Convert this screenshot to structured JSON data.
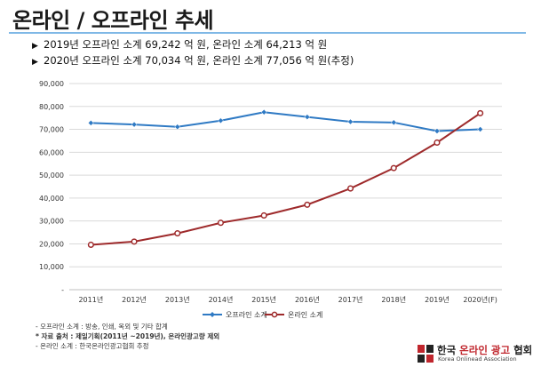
{
  "title": "온라인 / 오프라인 추세",
  "bullets": [
    "2019년 오프라인 소계 69,242 억 원, 온라인 소계 64,213 억 원",
    "2020년 오프라인 소계 70,034 억 원, 온라인 소계 77,056 억 원(추정)"
  ],
  "colors": {
    "offline": "#2f7ac4",
    "online": "#9e2a2b",
    "rule": "#7fb8e6",
    "grid": "#d9d9d9"
  },
  "chart_data": {
    "type": "line",
    "categories": [
      "2011년",
      "2012년",
      "2013년",
      "2014년",
      "2015년",
      "2016년",
      "2017년",
      "2018년",
      "2019년",
      "2020년(F)"
    ],
    "series": [
      {
        "name": "오프라인 소계",
        "values": [
          72800,
          72100,
          71100,
          73800,
          77500,
          75400,
          73300,
          73000,
          69242,
          70034
        ]
      },
      {
        "name": "온라인 소계",
        "values": [
          19600,
          21000,
          24600,
          29200,
          32400,
          37100,
          44200,
          53100,
          64213,
          77056
        ]
      }
    ],
    "ylim": [
      0,
      90000
    ],
    "ytick_labels": [
      "-",
      "10,000",
      "20,000",
      "30,000",
      "40,000",
      "50,000",
      "60,000",
      "70,000",
      "80,000",
      "90,000"
    ],
    "grid": true,
    "legend": "bottom"
  },
  "notes": {
    "line1": "- 오프라인 소계 : 방송, 인쇄, 옥외 및 기타 합계",
    "line2": "* 자료 출처 : 제일기획(2011년 ~2019년), 온라인광고량 제외",
    "line3": "- 온라인 소계 : 한국온라인광고협회 추정"
  },
  "logo": {
    "name_pre": "한국 ",
    "name_red": "온라인 광고",
    "name_post": " 협회",
    "sub": "Korea Onlinead Association"
  }
}
